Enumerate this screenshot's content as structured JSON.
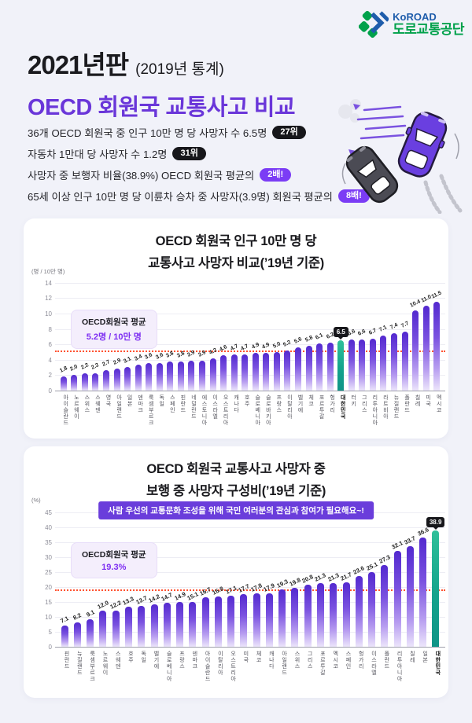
{
  "logo": {
    "brand": "KoROAD",
    "org": "도로교통공단",
    "blue": "#1f5dab",
    "green": "#00a14b"
  },
  "header": {
    "edition": "2021년판",
    "edition_note": "(2019년 통계)",
    "title": "OECD 회원국 교통사고 비교",
    "accent_color": "#6a36d9"
  },
  "facts": [
    {
      "text": "36개 OECD 회원국 중 인구 10만 명 당 사망자 수 6.5명",
      "badge": "27위",
      "style": "black"
    },
    {
      "text": "자동차 1만대 당 사망자 수 1.2명",
      "badge": "31위",
      "style": "black"
    },
    {
      "text": "사망자 중 보행자 비율(38.9%) OECD 회원국 평균의",
      "badge": "2배!",
      "style": "purple"
    },
    {
      "text": "65세 이상 인구 10만 명 당 이륜차 승차 중 사망자(3.9명) 회원국 평균의",
      "badge": "8배!",
      "style": "purple"
    }
  ],
  "colors": {
    "bar_purple_top": "#5329cf",
    "bar_korea_teal": "#14a38c",
    "average_line": "#ff5230",
    "badge_black": "#17171b",
    "badge_purple": "#7b3cf5",
    "card_bg": "#ffffff",
    "page_bg": "#f1f2f9"
  },
  "chart_data": [
    {
      "type": "bar",
      "title_line1": "OECD 회원국 인구 10만 명 당",
      "title_line2": "교통사고 사망자 비교(’19년 기준)",
      "unit": "(명 / 10만 명)",
      "ylim": [
        0,
        14
      ],
      "ytick_step": 2,
      "yticks": [
        0,
        2,
        4,
        6,
        8,
        10,
        12,
        14
      ],
      "grid": true,
      "average": 5.2,
      "average_label": "OECD회원국 평균",
      "average_value_label": "5.2명 / 10만 명",
      "highlight": "대한민국",
      "highlight_badge": "6.5",
      "categories": [
        "아이슬란드",
        "노르웨이",
        "스위스",
        "스웨덴",
        "영국",
        "아일랜드",
        "일본",
        "덴마크",
        "룩셈부르크",
        "독일",
        "스페인",
        "핀란드",
        "네덜란드",
        "에스토니아",
        "이스라엘",
        "오스트리아",
        "캐나다",
        "호주",
        "슬로베니아",
        "슬로바키아",
        "프랑스",
        "이탈리아",
        "벨기에",
        "체코",
        "포르투갈",
        "헝가리",
        "대한민국",
        "터키",
        "그리스",
        "리투아니아",
        "라트비아",
        "뉴질랜드",
        "폴란드",
        "칠레",
        "미국",
        "멕시코"
      ],
      "values": [
        1.8,
        2.0,
        2.2,
        2.2,
        2.7,
        2.9,
        3.1,
        3.4,
        3.6,
        3.6,
        3.8,
        3.8,
        3.9,
        3.9,
        4.2,
        4.6,
        4.7,
        4.7,
        4.9,
        4.9,
        5.0,
        5.2,
        5.6,
        5.8,
        6.1,
        6.2,
        6.5,
        6.6,
        6.6,
        6.7,
        7.1,
        7.4,
        7.7,
        10.4,
        11.0,
        11.5
      ]
    },
    {
      "type": "bar",
      "title_line1": "OECD 회원국 교통사고 사망자 중",
      "title_line2": "보행 중 사망자 구성비(’19년 기준)",
      "unit": "(%)",
      "banner": "사람 우선의 교통문화 조성을 위해 국민 여러분의 관심과 참여가 필요해요~!",
      "ylim": [
        0,
        45
      ],
      "ytick_step": 5,
      "yticks": [
        0,
        5,
        10,
        15,
        20,
        25,
        30,
        35,
        40,
        45
      ],
      "grid": true,
      "average": 19.3,
      "average_label": "OECD회원국 평균",
      "average_value_label": "19.3%",
      "highlight": "대한민국",
      "highlight_badge": "38.9",
      "categories": [
        "핀란드",
        "뉴질랜드",
        "룩셈부르크",
        "노르웨이",
        "스웨덴",
        "호주",
        "독일",
        "벨기에",
        "슬로베니아",
        "프랑스",
        "덴마크",
        "아이슬란드",
        "이탈리아",
        "오스트리아",
        "미국",
        "체코",
        "캐나다",
        "아일랜드",
        "스위스",
        "그리스",
        "포르투갈",
        "멕시코",
        "스페인",
        "헝가리",
        "이스라엘",
        "폴란드",
        "리투아니아",
        "칠레",
        "일본",
        "대한민국"
      ],
      "values": [
        7.1,
        8.2,
        9.1,
        12.0,
        12.2,
        13.3,
        13.7,
        14.2,
        14.7,
        14.9,
        15.1,
        16.7,
        16.8,
        17.1,
        17.7,
        17.8,
        17.9,
        19.3,
        19.8,
        20.8,
        21.3,
        21.3,
        21.7,
        23.6,
        25.1,
        27.3,
        32.1,
        33.7,
        36.6,
        38.9
      ]
    }
  ]
}
